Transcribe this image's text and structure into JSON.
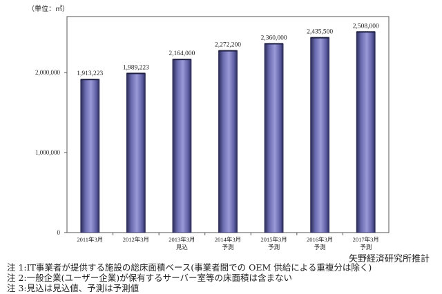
{
  "chart_data": {
    "type": "bar",
    "unit_label": "（単位：㎡）",
    "categories": [
      [
        "2011年3月"
      ],
      [
        "2012年3月"
      ],
      [
        "2013年3月",
        "見込"
      ],
      [
        "2014年3月",
        "予測"
      ],
      [
        "2015年3月",
        "予測"
      ],
      [
        "2016年3月",
        "予測"
      ],
      [
        "2017年3月",
        "予測"
      ]
    ],
    "values": [
      1913223,
      1989223,
      2164000,
      2272200,
      2360000,
      2435500,
      2508000
    ],
    "value_labels": [
      "1,913,223",
      "1,989,223",
      "2,164,000",
      "2,272,200",
      "2,360,000",
      "2,435,500",
      "2,508,000"
    ],
    "yticks": [
      0,
      1000000,
      2000000
    ],
    "ytick_labels": [
      "0",
      "1,000,000",
      "2,000,000"
    ],
    "ylim": [
      0,
      2700000
    ],
    "grid": false,
    "bar_color": "#8484c8",
    "bar_edge_color": "#2a2a55"
  },
  "source": "矢野経済研究所推計",
  "notes": [
    "注 1:IT事業者が提供する施設の総床面積ベース(事業者間での OEM 供給による重複分は除く)",
    "注 2:一般企業(ユーザー企業)が保有するサーバー室等の床面積は含まない",
    "注 3:見込は見込値、予測は予測値"
  ]
}
